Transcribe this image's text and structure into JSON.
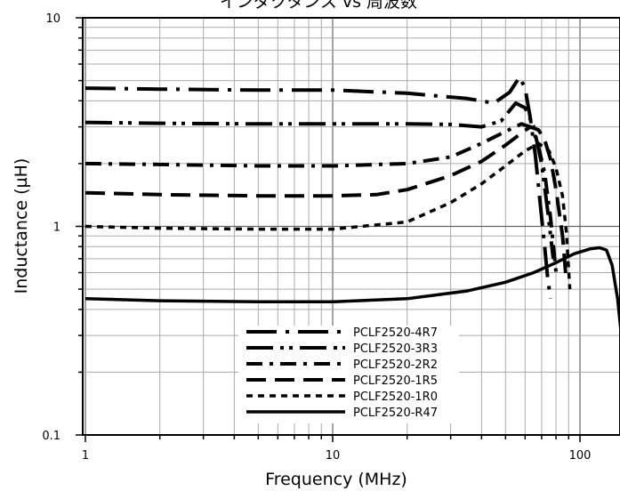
{
  "chart_data": {
    "type": "line",
    "title": "インダクタンス vs 周波数",
    "xlabel": "Frequency (MHz)",
    "ylabel": "Inductance (µH)",
    "x_scale": "log",
    "y_scale": "log",
    "xlim": [
      1,
      150
    ],
    "ylim": [
      0.1,
      10
    ],
    "x_ticks": [
      {
        "value": 1,
        "label": "1"
      },
      {
        "value": 10,
        "label": "10"
      },
      {
        "value": 100,
        "label": "100"
      }
    ],
    "y_ticks": [
      {
        "value": 0.1,
        "label": "0.1"
      },
      {
        "value": 1,
        "label": "1"
      },
      {
        "value": 10,
        "label": "10"
      }
    ],
    "grid": true,
    "legend_position": "bottom-center",
    "series": [
      {
        "name": "PCLF2520-4R7",
        "style": "long-dash-dot",
        "points": [
          [
            1,
            4.6
          ],
          [
            2,
            4.55
          ],
          [
            5,
            4.5
          ],
          [
            10,
            4.5
          ],
          [
            20,
            4.35
          ],
          [
            35,
            4.1
          ],
          [
            45,
            3.9
          ],
          [
            52,
            4.4
          ],
          [
            57,
            5.2
          ],
          [
            60,
            4.6
          ],
          [
            63,
            3.3
          ],
          [
            66,
            2.2
          ],
          [
            69,
            1.3
          ],
          [
            72,
            0.8
          ],
          [
            74,
            0.57
          ],
          [
            76,
            0.45
          ]
        ]
      },
      {
        "name": "PCLF2520-3R3",
        "style": "long-dash-dot-dot",
        "points": [
          [
            1,
            3.15
          ],
          [
            2,
            3.12
          ],
          [
            5,
            3.1
          ],
          [
            10,
            3.1
          ],
          [
            20,
            3.1
          ],
          [
            30,
            3.08
          ],
          [
            40,
            3.0
          ],
          [
            48,
            3.2
          ],
          [
            55,
            3.9
          ],
          [
            60,
            3.7
          ],
          [
            65,
            3.0
          ],
          [
            70,
            2.0
          ],
          [
            74,
            1.2
          ],
          [
            78,
            0.7
          ]
        ]
      },
      {
        "name": "PCLF2520-2R2",
        "style": "dash-dot",
        "points": [
          [
            1,
            2.0
          ],
          [
            2,
            1.98
          ],
          [
            5,
            1.95
          ],
          [
            10,
            1.95
          ],
          [
            20,
            2.0
          ],
          [
            30,
            2.15
          ],
          [
            40,
            2.5
          ],
          [
            50,
            2.85
          ],
          [
            58,
            3.1
          ],
          [
            63,
            3.0
          ],
          [
            67,
            2.6
          ],
          [
            72,
            1.8
          ],
          [
            76,
            1.1
          ],
          [
            80,
            0.6
          ]
        ]
      },
      {
        "name": "PCLF2520-1R5",
        "style": "long-dash",
        "points": [
          [
            1,
            1.45
          ],
          [
            2,
            1.42
          ],
          [
            5,
            1.4
          ],
          [
            10,
            1.4
          ],
          [
            15,
            1.42
          ],
          [
            20,
            1.5
          ],
          [
            30,
            1.75
          ],
          [
            40,
            2.05
          ],
          [
            50,
            2.45
          ],
          [
            58,
            2.8
          ],
          [
            63,
            3.0
          ],
          [
            68,
            2.9
          ],
          [
            72,
            2.6
          ],
          [
            76,
            2.1
          ],
          [
            80,
            1.5
          ],
          [
            85,
            0.9
          ],
          [
            88,
            0.55
          ]
        ]
      },
      {
        "name": "PCLF2520-1R0",
        "style": "short-dash",
        "points": [
          [
            1,
            1.0
          ],
          [
            2,
            0.98
          ],
          [
            5,
            0.97
          ],
          [
            10,
            0.97
          ],
          [
            20,
            1.05
          ],
          [
            30,
            1.3
          ],
          [
            40,
            1.6
          ],
          [
            50,
            1.95
          ],
          [
            60,
            2.3
          ],
          [
            68,
            2.5
          ],
          [
            75,
            2.3
          ],
          [
            80,
            1.9
          ],
          [
            85,
            1.4
          ],
          [
            88,
            0.95
          ],
          [
            91,
            0.5
          ]
        ]
      },
      {
        "name": "PCLF2520-R47",
        "style": "solid",
        "points": [
          [
            1,
            0.45
          ],
          [
            2,
            0.44
          ],
          [
            5,
            0.435
          ],
          [
            10,
            0.435
          ],
          [
            20,
            0.45
          ],
          [
            35,
            0.49
          ],
          [
            50,
            0.54
          ],
          [
            65,
            0.6
          ],
          [
            80,
            0.67
          ],
          [
            95,
            0.74
          ],
          [
            110,
            0.78
          ],
          [
            120,
            0.79
          ],
          [
            128,
            0.77
          ],
          [
            135,
            0.65
          ],
          [
            142,
            0.45
          ],
          [
            148,
            0.28
          ]
        ]
      }
    ]
  }
}
